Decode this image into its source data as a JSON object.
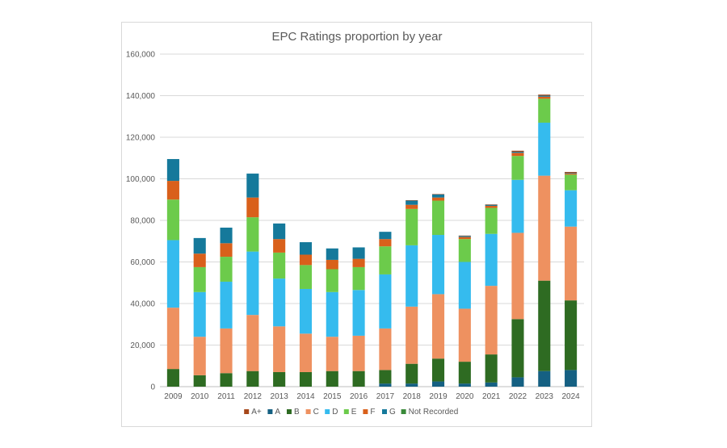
{
  "chart_data": {
    "type": "bar",
    "stacked": true,
    "title": "EPC Ratings proportion by year",
    "xlabel": "",
    "ylabel": "",
    "ylim": [
      0,
      160000
    ],
    "yticks": [
      0,
      20000,
      40000,
      60000,
      80000,
      100000,
      120000,
      140000,
      160000
    ],
    "ytick_labels": [
      "0",
      "20,000",
      "40,000",
      "60,000",
      "80,000",
      "100,000",
      "120,000",
      "140,000",
      "160,000"
    ],
    "grid": true,
    "legend_position": "bottom",
    "categories": [
      "2009",
      "2010",
      "2011",
      "2012",
      "2013",
      "2014",
      "2015",
      "2016",
      "2017",
      "2018",
      "2019",
      "2020",
      "2021",
      "2022",
      "2023",
      "2024"
    ],
    "series": [
      {
        "name": "Not Recorded",
        "color": "#3a8a3a",
        "values": [
          0,
          0,
          0,
          0,
          0,
          0,
          0,
          0,
          0,
          0,
          0,
          0,
          0,
          0,
          0,
          0
        ]
      },
      {
        "name": "A",
        "color": "#156082",
        "values": [
          0,
          0,
          0,
          0,
          0,
          0,
          0,
          0,
          1500,
          1500,
          2500,
          1500,
          2000,
          4500,
          7500,
          8000
        ]
      },
      {
        "name": "B",
        "color": "#2e6b22",
        "values": [
          8500,
          5500,
          6500,
          7500,
          7000,
          7000,
          7500,
          7500,
          6500,
          9500,
          11000,
          10500,
          13500,
          28000,
          43500,
          33500
        ]
      },
      {
        "name": "C",
        "color": "#ee9160",
        "values": [
          29500,
          18500,
          21500,
          27000,
          22000,
          18500,
          16500,
          17000,
          20000,
          27500,
          31000,
          25500,
          33000,
          41500,
          50500,
          35500
        ]
      },
      {
        "name": "D",
        "color": "#35bbee",
        "values": [
          32500,
          21500,
          22500,
          30500,
          23000,
          21500,
          21500,
          22000,
          26000,
          29500,
          28500,
          22500,
          25000,
          25500,
          25500,
          17500
        ]
      },
      {
        "name": "E",
        "color": "#6ccb4b",
        "values": [
          19500,
          12000,
          12000,
          16500,
          12500,
          11500,
          11000,
          11000,
          13500,
          17500,
          16500,
          11000,
          12500,
          11500,
          11500,
          7500
        ]
      },
      {
        "name": "F",
        "color": "#d9601b",
        "values": [
          9000,
          6500,
          6500,
          9500,
          6500,
          5000,
          4500,
          4000,
          3500,
          2000,
          1500,
          1000,
          1000,
          1500,
          1000,
          500
        ]
      },
      {
        "name": "G",
        "color": "#15799b",
        "values": [
          10500,
          7500,
          7500,
          11500,
          7500,
          6000,
          5500,
          5500,
          3500,
          2000,
          1500,
          500,
          500,
          500,
          500,
          300
        ]
      },
      {
        "name": "A+",
        "color": "#a6471a",
        "values": [
          0,
          0,
          0,
          0,
          0,
          0,
          0,
          0,
          0,
          200,
          200,
          200,
          200,
          500,
          500,
          500
        ]
      }
    ],
    "legend_order": [
      "A+",
      "A",
      "B",
      "C",
      "D",
      "E",
      "F",
      "G",
      "Not Recorded"
    ]
  }
}
